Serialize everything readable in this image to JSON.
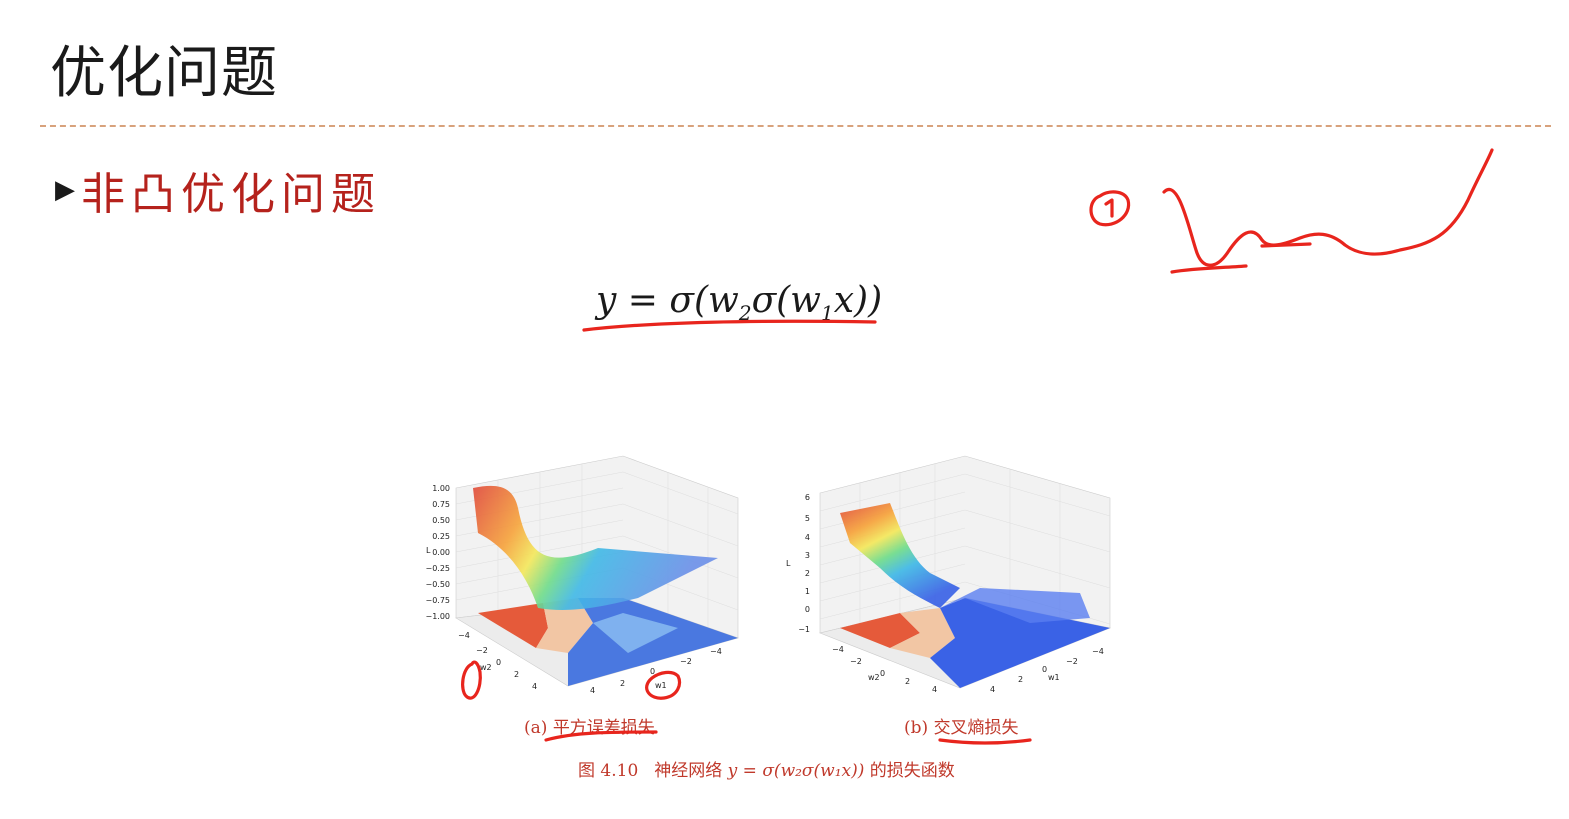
{
  "slide": {
    "title": "优化问题",
    "bullet_icon": "triangle-right-icon",
    "bullet_text": "非凸优化问题"
  },
  "formula": {
    "lhs": "y",
    "eq": " = σ(w",
    "sub2": "2",
    "mid": "σ(w",
    "sub1": "1",
    "tail": "x))"
  },
  "handwriting": {
    "marker": "①"
  },
  "figure": {
    "plot_a": {
      "z_ticks": [
        "1.00",
        "0.75",
        "0.50",
        "0.25",
        "0.00",
        "−0.25",
        "−0.50",
        "−0.75",
        "−1.00"
      ],
      "zlabel": "L",
      "w2_ticks": [
        "−4",
        "−2",
        "0",
        "2",
        "4"
      ],
      "w1_ticks": [
        "4",
        "2",
        "0",
        "−2",
        "−4"
      ],
      "w2_label": "w2",
      "w1_label": "w1"
    },
    "plot_b": {
      "z_ticks": [
        "6",
        "5",
        "4",
        "3",
        "2",
        "1",
        "0",
        "−1"
      ],
      "zlabel": "L",
      "w2_ticks": [
        "−4",
        "−2",
        "0",
        "2",
        "4"
      ],
      "w1_ticks": [
        "4",
        "2",
        "0",
        "−2",
        "−4"
      ],
      "w2_label": "w2",
      "w1_label": "w1"
    },
    "caption_a_prefix": "(a) ",
    "caption_a": "平方误差损失",
    "caption_b_prefix": "(b) ",
    "caption_b": "交叉熵损失",
    "fig_number": "图 4.10",
    "fig_text_1": "神经网络 ",
    "fig_formula": "y = σ(w₂σ(w₁x))",
    "fig_text_2": " 的损失函数"
  },
  "colors": {
    "title": "#1a1a1a",
    "accent_red": "#b5221c",
    "caption_red": "#c0392b",
    "ink_red": "#e8251d",
    "divider": "#d8a27c"
  }
}
